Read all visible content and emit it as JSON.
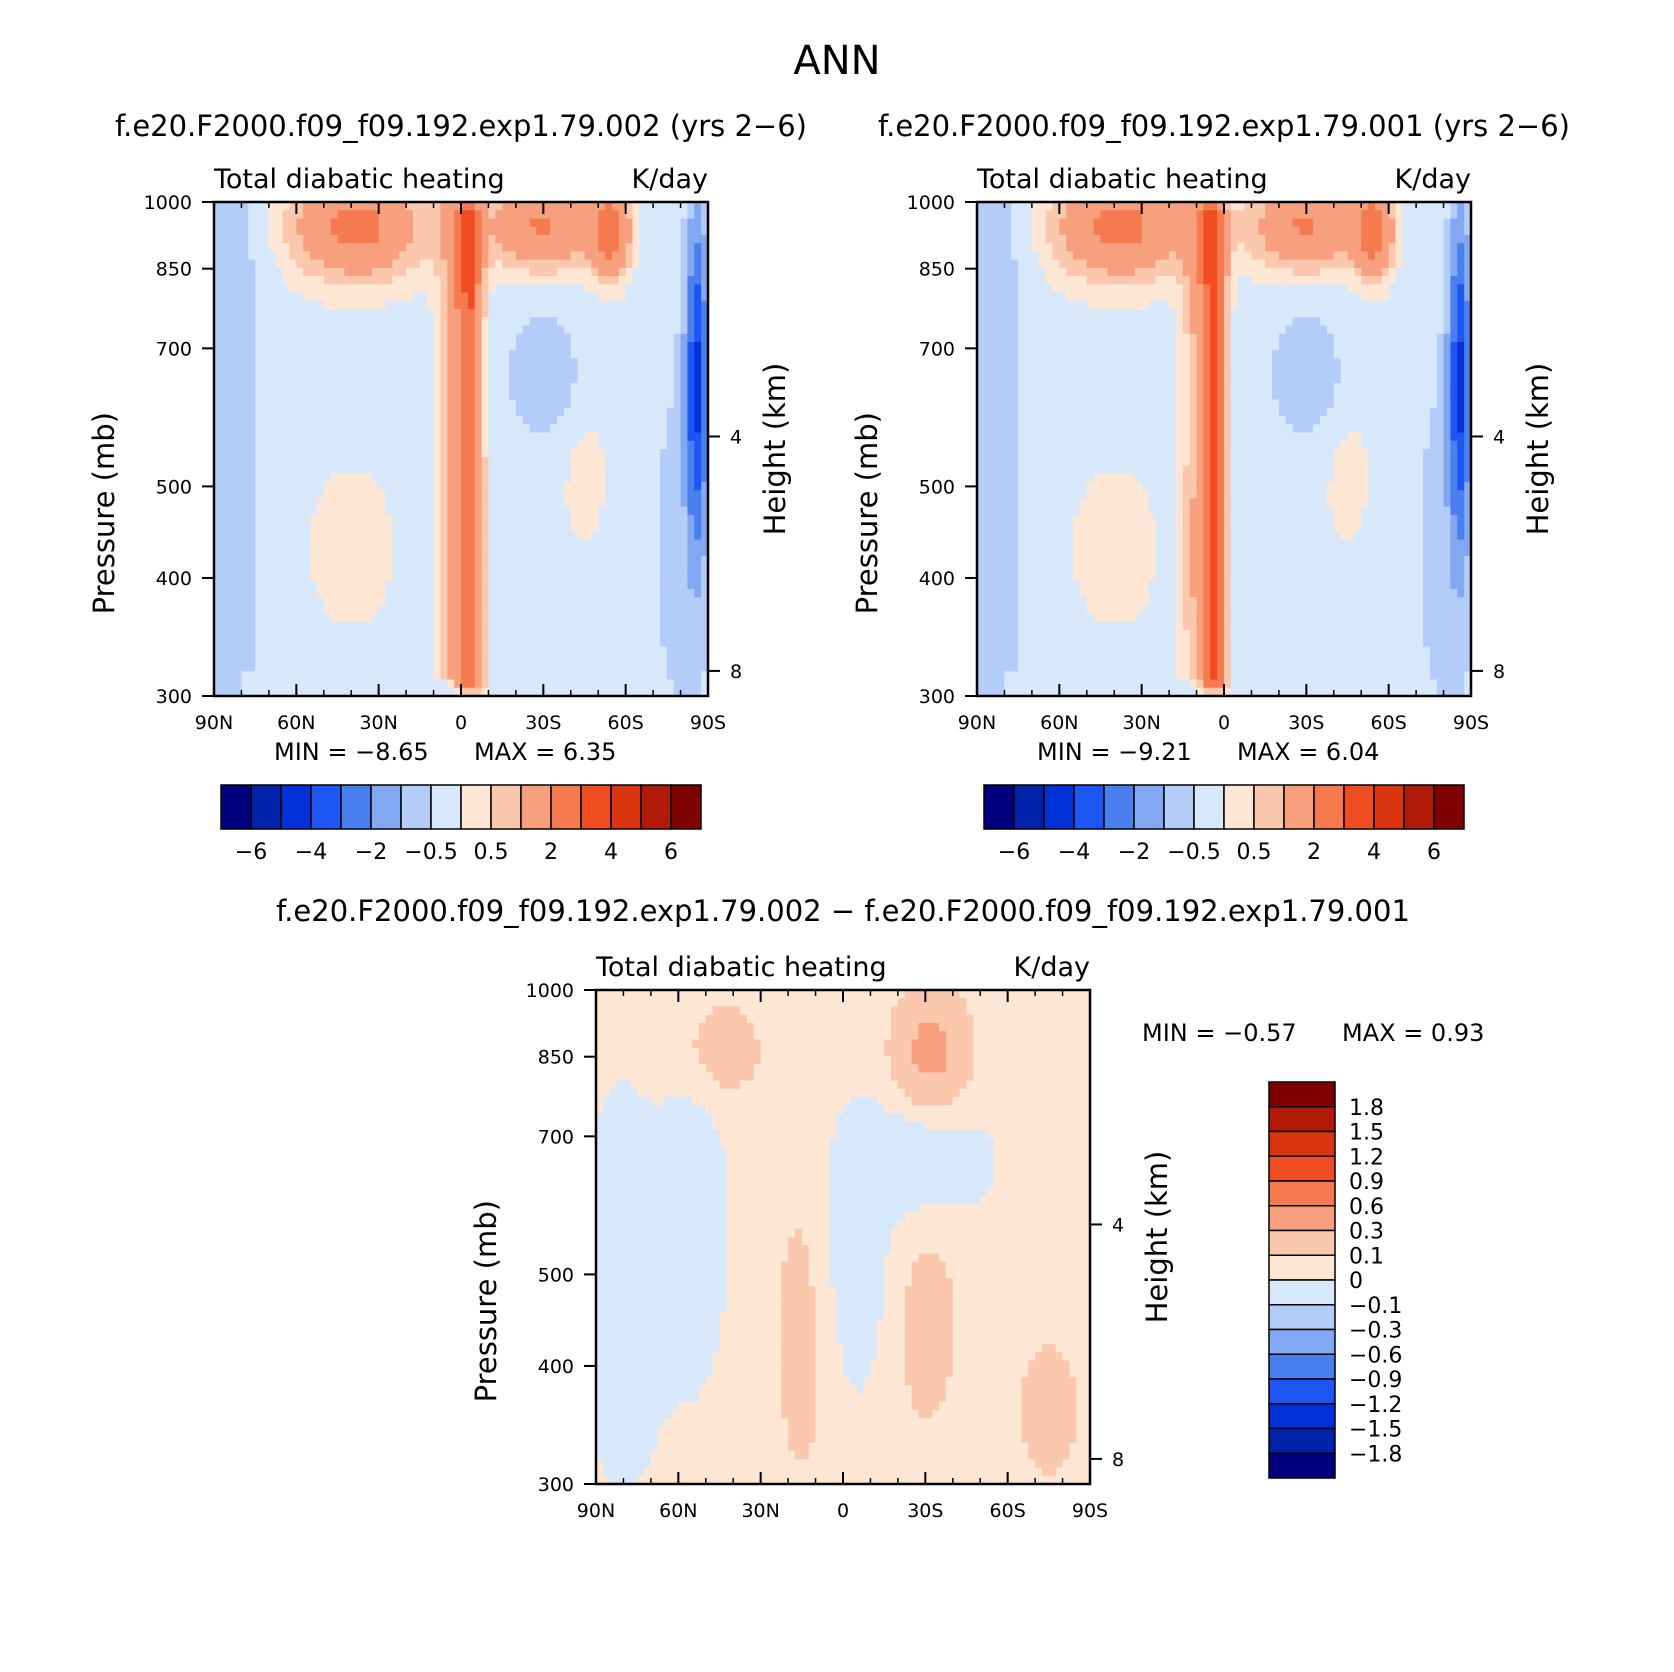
{
  "figure": {
    "title": "ANN"
  },
  "chart_data": [
    {
      "type": "heatmap",
      "panel": "top-left",
      "title": "f.e20.F2000.f09_f09.192.exp1.79.002 (yrs 2−6)",
      "left_title": "Total diabatic heating",
      "right_title": "K/day",
      "xlabel": "",
      "ylabel": "Pressure (mb)",
      "y2label": "Height (km)",
      "x_ticks": [
        "90N",
        "60N",
        "30N",
        "0",
        "30S",
        "60S",
        "90S"
      ],
      "x_tick_values": [
        90,
        60,
        30,
        0,
        -30,
        -60,
        -90
      ],
      "xlim": [
        90,
        -90
      ],
      "y_ticks": [
        "300",
        "400",
        "500",
        "700",
        "850",
        "1000"
      ],
      "y_tick_values": [
        300,
        400,
        500,
        700,
        850,
        1000
      ],
      "ylim": [
        1000,
        300
      ],
      "y_scale": "log",
      "y2_ticks": [
        "4",
        "8"
      ],
      "y2_tick_values": [
        4,
        8
      ],
      "min_text": "MIN =  −8.65",
      "max_text": "MAX =    6.35",
      "min": -8.65,
      "max": 6.35,
      "colorbar_labels": [
        "−6",
        "−4",
        "−2",
        "−0.5",
        "0.5",
        "2",
        "4",
        "6"
      ],
      "colorbar_colors": [
        "#00007f",
        "#0022aa",
        "#0032d8",
        "#1e55f5",
        "#4a7ff0",
        "#82a8f4",
        "#b4ccf8",
        "#d8e8fb",
        "#fde6d4",
        "#fbc8ad",
        "#f8a07e",
        "#f57a4e",
        "#f04d22",
        "#db3410",
        "#b21b08",
        "#7f0000"
      ],
      "features": [
        {
          "kind": "equatorial heating tower",
          "lat": -3,
          "top_pressure": 310,
          "value": 2
        },
        {
          "kind": "boundary layer heating",
          "lat_range": [
            60,
            10
          ],
          "pressure_range": [
            870,
            1000
          ],
          "value": 2
        },
        {
          "kind": "southern boundary layer heating",
          "lat_range": [
            -10,
            -50
          ],
          "pressure_range": [
            880,
            1000
          ],
          "value": 2
        },
        {
          "kind": "polar cooling",
          "lat_range": [
            -75,
            -90
          ],
          "pressure_range": [
            600,
            950
          ],
          "value": -4
        }
      ]
    },
    {
      "type": "heatmap",
      "panel": "top-right",
      "title": "f.e20.F2000.f09_f09.192.exp1.79.001 (yrs 2−6)",
      "left_title": "Total diabatic heating",
      "right_title": "K/day",
      "xlabel": "",
      "ylabel": "Pressure (mb)",
      "y2label": "Height (km)",
      "x_ticks": [
        "90N",
        "60N",
        "30N",
        "0",
        "30S",
        "60S",
        "90S"
      ],
      "x_tick_values": [
        90,
        60,
        30,
        0,
        -30,
        -60,
        -90
      ],
      "xlim": [
        90,
        -90
      ],
      "y_ticks": [
        "300",
        "400",
        "500",
        "700",
        "850",
        "1000"
      ],
      "y_tick_values": [
        300,
        400,
        500,
        700,
        850,
        1000
      ],
      "ylim": [
        1000,
        300
      ],
      "y_scale": "log",
      "y2_ticks": [
        "4",
        "8"
      ],
      "y2_tick_values": [
        4,
        8
      ],
      "min_text": "MIN =  −9.21",
      "max_text": "MAX =    6.04",
      "min": -9.21,
      "max": 6.04,
      "colorbar_labels": [
        "−6",
        "−4",
        "−2",
        "−0.5",
        "0.5",
        "2",
        "4",
        "6"
      ],
      "colorbar_colors": [
        "#00007f",
        "#0022aa",
        "#0032d8",
        "#1e55f5",
        "#4a7ff0",
        "#82a8f4",
        "#b4ccf8",
        "#d8e8fb",
        "#fde6d4",
        "#fbc8ad",
        "#f8a07e",
        "#f57a4e",
        "#f04d22",
        "#db3410",
        "#b21b08",
        "#7f0000"
      ],
      "features": [
        {
          "kind": "equatorial heating tower",
          "lat": 4,
          "top_pressure": 320,
          "value": 2
        },
        {
          "kind": "boundary layer heating",
          "lat_range": [
            60,
            10
          ],
          "pressure_range": [
            870,
            1000
          ],
          "value": 2
        },
        {
          "kind": "southern boundary layer heating",
          "lat_range": [
            -10,
            -50
          ],
          "pressure_range": [
            880,
            1000
          ],
          "value": 2
        },
        {
          "kind": "polar cooling",
          "lat_range": [
            -75,
            -90
          ],
          "pressure_range": [
            600,
            950
          ],
          "value": -4
        }
      ]
    },
    {
      "type": "heatmap",
      "panel": "bottom",
      "title": "f.e20.F2000.f09_f09.192.exp1.79.002 − f.e20.F2000.f09_f09.192.exp1.79.001",
      "left_title": "Total diabatic heating",
      "right_title": "K/day",
      "xlabel": "",
      "ylabel": "Pressure (mb)",
      "y2label": "Height (km)",
      "x_ticks": [
        "90N",
        "60N",
        "30N",
        "0",
        "30S",
        "60S",
        "90S"
      ],
      "x_tick_values": [
        90,
        60,
        30,
        0,
        -30,
        -60,
        -90
      ],
      "xlim": [
        90,
        -90
      ],
      "y_ticks": [
        "300",
        "400",
        "500",
        "700",
        "850",
        "1000"
      ],
      "y_tick_values": [
        300,
        400,
        500,
        700,
        850,
        1000
      ],
      "ylim": [
        1000,
        300
      ],
      "y_scale": "log",
      "y2_ticks": [
        "4",
        "8"
      ],
      "y2_tick_values": [
        4,
        8
      ],
      "min_text": "MIN =   −0.57",
      "max_text": "MAX =     0.93",
      "min": -0.57,
      "max": 0.93,
      "colorbar_labels": [
        "1.8",
        "1.5",
        "1.2",
        "0.9",
        "0.6",
        "0.3",
        "0.1",
        "0",
        "−0.1",
        "−0.3",
        "−0.6",
        "−0.9",
        "−1.2",
        "−1.5",
        "−1.8"
      ],
      "colorbar_colors": [
        "#7f0000",
        "#b21b08",
        "#db3410",
        "#f04d22",
        "#f57a4e",
        "#f8a07e",
        "#fbc8ad",
        "#fde6d4",
        "#d8e8fb",
        "#b4ccf8",
        "#82a8f4",
        "#4a7ff0",
        "#1e55f5",
        "#0032d8",
        "#0022aa",
        "#00007f"
      ],
      "features": [
        {
          "kind": "positive difference",
          "lat_range": [
            -20,
            -40
          ],
          "pressure_range": [
            850,
            950
          ],
          "value": 0.3
        },
        {
          "kind": "positive difference",
          "lat_range": [
            -25,
            -45
          ],
          "pressure_range": [
            420,
            620
          ],
          "value": 0.1
        },
        {
          "kind": "negative difference",
          "lat_range": [
            -10,
            -50
          ],
          "pressure_range": [
            620,
            850
          ],
          "value": -0.1
        }
      ]
    }
  ]
}
